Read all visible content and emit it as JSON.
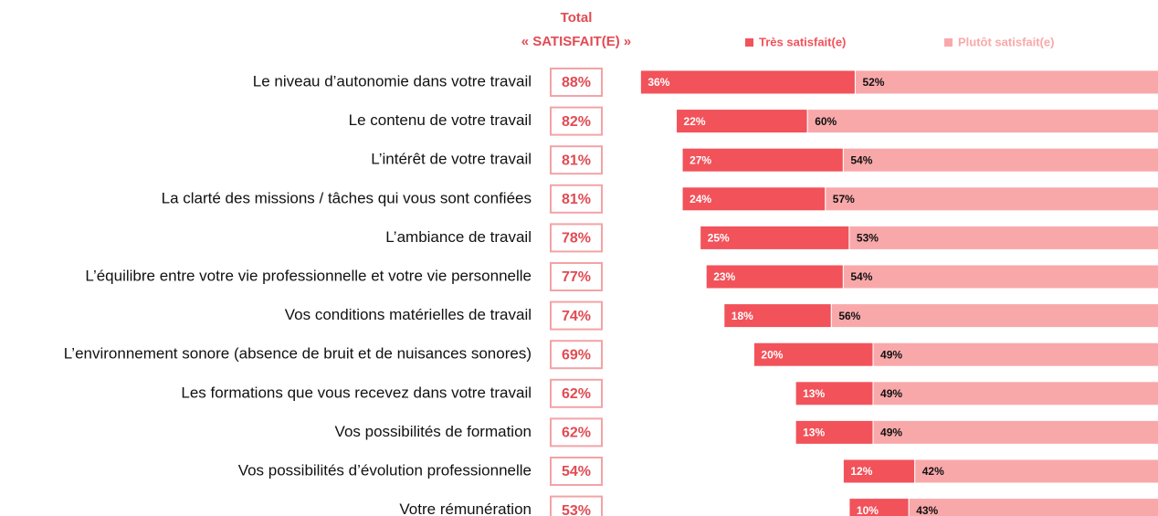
{
  "chart_data": {
    "type": "stacked-bar-horizontal",
    "total_title": [
      "Total",
      "« SATISFAIT(E) »"
    ],
    "categories": [
      "Le niveau d’autonomie dans votre travail",
      "Le contenu de votre travail",
      "L’intérêt de votre travail",
      "La clarté des missions / tâches qui vous sont confiées",
      "L’ambiance de travail",
      "L’équilibre entre votre vie professionnelle et votre vie personnelle",
      "Vos conditions matérielles de travail",
      "L’environnement sonore (absence de bruit et de nuisances sonores)",
      "Les formations que vous recevez dans votre travail",
      "Vos possibilités de formation",
      "Vos possibilités d’évolution professionnelle",
      "Votre rémunération"
    ],
    "totals": {
      "values": [
        88,
        82,
        81,
        81,
        78,
        77,
        74,
        69,
        62,
        62,
        54,
        53
      ],
      "value_labels": [
        "88%",
        "82%",
        "81%",
        "81%",
        "78%",
        "77%",
        "74%",
        "69%",
        "62%",
        "62%",
        "54%",
        "53%"
      ]
    },
    "series": [
      {
        "name": "Très satisfait(e)",
        "color": "#f2525a",
        "values": [
          36,
          22,
          27,
          24,
          25,
          23,
          18,
          20,
          13,
          13,
          12,
          10
        ],
        "value_labels": [
          "36%",
          "22%",
          "27%",
          "24%",
          "25%",
          "23%",
          "18%",
          "20%",
          "13%",
          "13%",
          "12%",
          "10%"
        ]
      },
      {
        "name": "Plutôt satisfait(e)",
        "color": "#f9a8aa",
        "values": [
          52,
          60,
          54,
          57,
          53,
          54,
          56,
          49,
          49,
          49,
          42,
          43
        ],
        "value_labels": [
          "52%",
          "60%",
          "54%",
          "57%",
          "53%",
          "54%",
          "56%",
          "49%",
          "49%",
          "49%",
          "42%",
          "43%"
        ]
      }
    ]
  }
}
